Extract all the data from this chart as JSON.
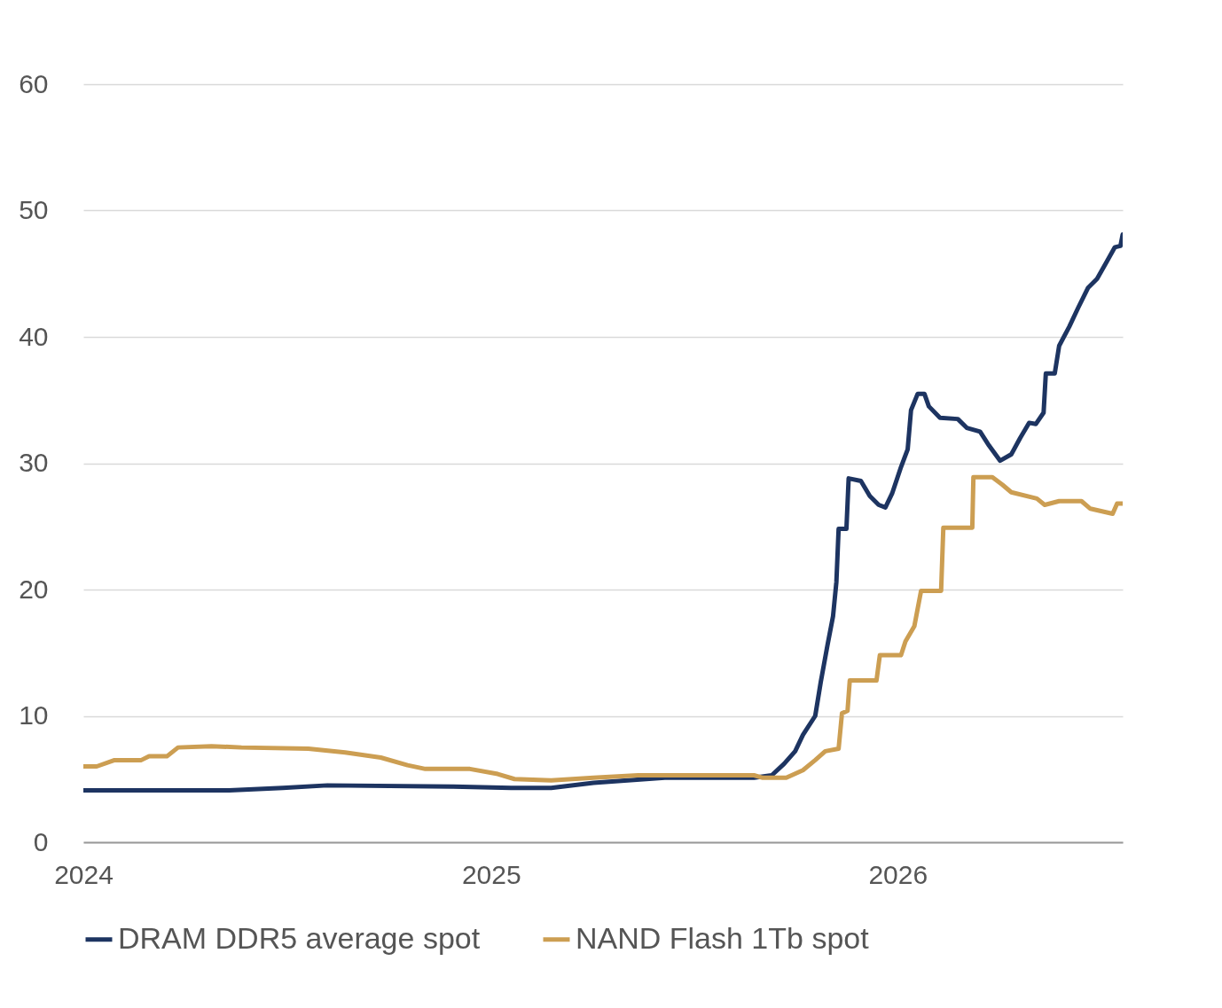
{
  "chart_data": {
    "type": "line",
    "x": [
      "2024-01-01",
      "2024-05-11",
      "2024-06-28",
      "2024-08-07",
      "2024-11-28",
      "2025-01-19",
      "2025-02-24",
      "2025-04-03",
      "2025-06-06",
      "2025-08-25",
      "2025-09-10",
      "2025-09-21",
      "2025-10-01",
      "2025-10-08",
      "2025-10-19",
      "2025-10-24",
      "2025-10-30",
      "2025-11-04",
      "2025-11-07",
      "2025-11-09",
      "2025-11-16",
      "2025-11-18",
      "2025-11-29",
      "2025-12-07",
      "2025-12-15",
      "2025-12-21",
      "2025-12-27",
      "2026-01-04",
      "2026-01-10",
      "2026-01-13",
      "2026-01-19",
      "2026-01-25",
      "2026-01-29",
      "2026-02-08",
      "2026-02-24",
      "2026-03-04",
      "2026-03-16",
      "2026-03-24",
      "2026-04-03",
      "2026-04-13",
      "2026-04-21",
      "2026-04-29",
      "2026-05-05",
      "2026-05-12",
      "2026-05-14",
      "2026-05-22",
      "2026-05-26",
      "2026-06-04",
      "2026-06-12",
      "2026-06-21",
      "2026-06-29",
      "2026-07-08",
      "2026-07-15",
      "2026-07-20",
      "2026-07-22"
    ],
    "series": [
      {
        "name": "DRAM DDR5 average spot",
        "color": "#1d3461",
        "values": [
          4.1,
          4.1,
          4.3,
          4.5,
          4.4,
          4.3,
          4.3,
          4.7,
          5.1,
          5.1,
          5.3,
          6.2,
          7.2,
          8.5,
          10.0,
          12.7,
          15.6,
          17.9,
          20.6,
          24.8,
          24.8,
          28.8,
          28.6,
          27.4,
          26.7,
          26.5,
          27.6,
          29.7,
          31.1,
          34.2,
          35.5,
          35.5,
          34.5,
          33.6,
          33.5,
          32.8,
          32.5,
          31.4,
          30.2,
          30.7,
          32.0,
          33.2,
          33.1,
          34.0,
          37.1,
          37.1,
          39.3,
          40.8,
          42.3,
          43.9,
          44.6,
          46.0,
          47.1,
          47.2,
          48.1
        ]
      },
      {
        "name": "NAND Flash 1Tb spot",
        "color": "#cc9e52",
        "x": [
          "2024-01-01",
          "2024-01-13",
          "2024-01-29",
          "2024-02-22",
          "2024-02-29",
          "2024-03-16",
          "2024-03-26",
          "2024-04-25",
          "2024-05-22",
          "2024-07-21",
          "2024-08-23",
          "2024-09-24",
          "2024-10-18",
          "2024-11-03",
          "2024-12-13",
          "2025-01-07",
          "2025-01-22",
          "2025-02-24",
          "2025-04-03",
          "2025-05-13",
          "2025-08-25",
          "2025-09-02",
          "2025-09-23",
          "2025-10-08",
          "2025-10-19",
          "2025-10-28",
          "2025-11-09",
          "2025-11-12",
          "2025-11-17",
          "2025-11-19",
          "2025-12-13",
          "2025-12-16",
          "2026-01-04",
          "2026-01-08",
          "2026-01-16",
          "2026-01-22",
          "2026-02-09",
          "2026-02-11",
          "2026-03-09",
          "2026-03-10",
          "2026-03-27",
          "2026-04-05",
          "2026-04-13",
          "2026-05-06",
          "2026-05-13",
          "2026-05-26",
          "2026-06-15",
          "2026-06-23",
          "2026-07-13",
          "2026-07-17",
          "2026-07-22"
        ],
        "values": [
          6.0,
          6.0,
          6.5,
          6.5,
          6.8,
          6.8,
          7.5,
          7.6,
          7.5,
          7.4,
          7.1,
          6.7,
          6.1,
          5.8,
          5.8,
          5.4,
          5.0,
          4.9,
          5.1,
          5.3,
          5.3,
          5.1,
          5.1,
          5.7,
          6.5,
          7.2,
          7.4,
          10.2,
          10.4,
          12.8,
          12.8,
          14.8,
          14.8,
          15.9,
          17.1,
          19.9,
          19.9,
          24.9,
          24.9,
          28.9,
          28.9,
          28.3,
          27.7,
          27.2,
          26.7,
          27.0,
          27.0,
          26.4,
          26.0,
          26.8,
          26.8
        ]
      }
    ],
    "xlim": [
      "2024-01-01",
      "2026-07-22"
    ],
    "xticks": [
      {
        "value": "2024",
        "label": "2024"
      },
      {
        "value": "2025",
        "label": "2025"
      },
      {
        "value": "2026",
        "label": "2026"
      }
    ],
    "ylim": [
      0,
      60
    ],
    "yticks": [
      0,
      10,
      20,
      30,
      40,
      50,
      60
    ],
    "grid": "y",
    "legend": "bottom",
    "line_style": "solid"
  }
}
